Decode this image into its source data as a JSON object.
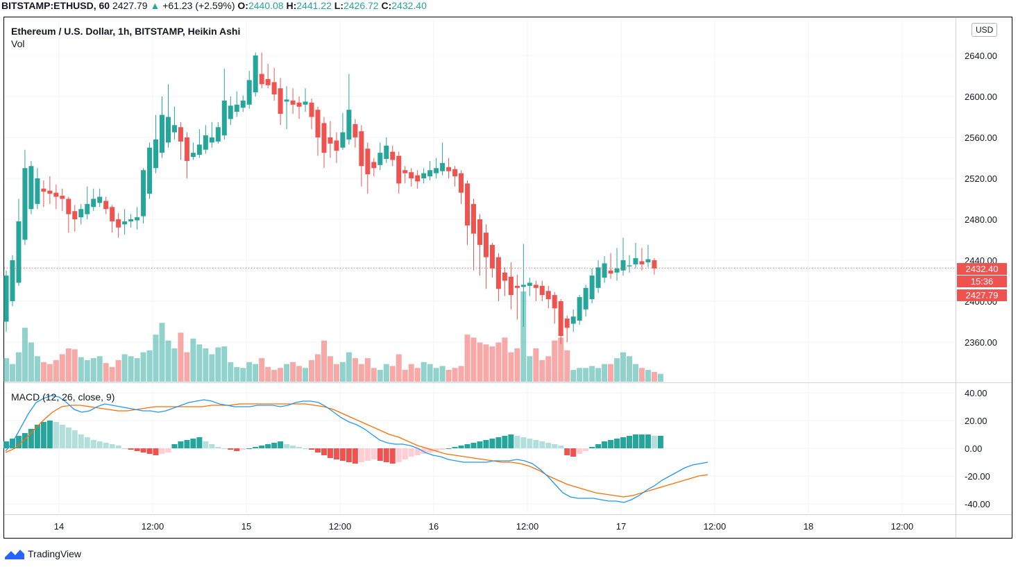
{
  "header": {
    "symbol": "BITSTAMP:ETHUSD, 60",
    "last": "2427.79",
    "change": "+61.23 (+2.59%)",
    "o_label": "O:",
    "o": "2440.08",
    "h_label": "H:",
    "h": "2441.22",
    "l_label": "L:",
    "l": "2426.72",
    "c_label": "C:",
    "c": "2432.40"
  },
  "legend": {
    "title": "Ethereum / U.S. Dollar, 1h, BITSTAMP, Heikin Ashi",
    "vol": "Vol",
    "macd": "MACD (12, 26, close, 9)"
  },
  "currency": "USD",
  "price_tag": {
    "price": "2432.40",
    "countdown": "15:36",
    "last": "2427.79"
  },
  "brand": "TradingView",
  "colors": {
    "up": "#26a69a",
    "down": "#ef5350",
    "macd": "#2196f3",
    "signal": "#ff6d00"
  },
  "chart_data": {
    "type": "candlestick",
    "price_axis": {
      "ticks": [
        "2640.00",
        "2600.00",
        "2560.00",
        "2520.00",
        "2480.00",
        "2440.00",
        "2400.00",
        "2360.00"
      ],
      "ylim": [
        2342,
        2660
      ]
    },
    "macd_axis": {
      "ticks": [
        "40.00",
        "20.00",
        "0.00",
        "-20.00",
        "-40.00"
      ],
      "ylim": [
        -50,
        45
      ]
    },
    "time_axis": {
      "ticks": [
        "14",
        "12:00",
        "15",
        "12:00",
        "16",
        "12:00",
        "17",
        "12:00",
        "18",
        "12:00"
      ]
    },
    "heikin_ashi": [
      {
        "o": 2380,
        "c": 2425,
        "h": 2430,
        "l": 2370
      },
      {
        "o": 2400,
        "c": 2440,
        "h": 2445,
        "l": 2395
      },
      {
        "o": 2418,
        "c": 2478,
        "h": 2500,
        "l": 2415
      },
      {
        "o": 2460,
        "c": 2530,
        "h": 2548,
        "l": 2455
      },
      {
        "o": 2490,
        "c": 2532,
        "h": 2537,
        "l": 2485
      },
      {
        "o": 2495,
        "c": 2520,
        "h": 2530,
        "l": 2490
      },
      {
        "o": 2510,
        "c": 2507,
        "h": 2518,
        "l": 2492
      },
      {
        "o": 2508,
        "c": 2505,
        "h": 2522,
        "l": 2495
      },
      {
        "o": 2506,
        "c": 2502,
        "h": 2514,
        "l": 2490
      },
      {
        "o": 2503,
        "c": 2500,
        "h": 2510,
        "l": 2488
      },
      {
        "o": 2500,
        "c": 2485,
        "h": 2502,
        "l": 2467
      },
      {
        "o": 2488,
        "c": 2480,
        "h": 2494,
        "l": 2468
      },
      {
        "o": 2482,
        "c": 2490,
        "h": 2495,
        "l": 2475
      },
      {
        "o": 2485,
        "c": 2495,
        "h": 2512,
        "l": 2480
      },
      {
        "o": 2492,
        "c": 2500,
        "h": 2510,
        "l": 2488
      },
      {
        "o": 2496,
        "c": 2502,
        "h": 2510,
        "l": 2492
      },
      {
        "o": 2498,
        "c": 2490,
        "h": 2502,
        "l": 2485
      },
      {
        "o": 2492,
        "c": 2478,
        "h": 2494,
        "l": 2467
      },
      {
        "o": 2480,
        "c": 2472,
        "h": 2486,
        "l": 2462
      },
      {
        "o": 2475,
        "c": 2478,
        "h": 2490,
        "l": 2465
      },
      {
        "o": 2478,
        "c": 2480,
        "h": 2485,
        "l": 2472
      },
      {
        "o": 2479,
        "c": 2482,
        "h": 2492,
        "l": 2470
      },
      {
        "o": 2483,
        "c": 2528,
        "h": 2530,
        "l": 2476
      },
      {
        "o": 2505,
        "c": 2550,
        "h": 2555,
        "l": 2500
      },
      {
        "o": 2530,
        "c": 2558,
        "h": 2582,
        "l": 2525
      },
      {
        "o": 2545,
        "c": 2582,
        "h": 2600,
        "l": 2540
      },
      {
        "o": 2555,
        "c": 2580,
        "h": 2612,
        "l": 2550
      },
      {
        "o": 2565,
        "c": 2572,
        "h": 2590,
        "l": 2558
      },
      {
        "o": 2570,
        "c": 2556,
        "h": 2575,
        "l": 2538
      },
      {
        "o": 2560,
        "c": 2537,
        "h": 2565,
        "l": 2520
      },
      {
        "o": 2541,
        "c": 2545,
        "h": 2555,
        "l": 2538
      },
      {
        "o": 2543,
        "c": 2553,
        "h": 2568,
        "l": 2540
      },
      {
        "o": 2548,
        "c": 2562,
        "h": 2572,
        "l": 2544
      },
      {
        "o": 2555,
        "c": 2560,
        "h": 2575,
        "l": 2550
      },
      {
        "o": 2556,
        "c": 2570,
        "h": 2575,
        "l": 2554
      },
      {
        "o": 2562,
        "c": 2596,
        "h": 2627,
        "l": 2558
      },
      {
        "o": 2578,
        "c": 2591,
        "h": 2600,
        "l": 2572
      },
      {
        "o": 2585,
        "c": 2592,
        "h": 2605,
        "l": 2580
      },
      {
        "o": 2589,
        "c": 2596,
        "h": 2601,
        "l": 2585
      },
      {
        "o": 2592,
        "c": 2616,
        "h": 2625,
        "l": 2588
      },
      {
        "o": 2604,
        "c": 2640,
        "h": 2643,
        "l": 2600
      },
      {
        "o": 2622,
        "c": 2612,
        "h": 2643,
        "l": 2608
      },
      {
        "o": 2617,
        "c": 2611,
        "h": 2632,
        "l": 2608
      },
      {
        "o": 2614,
        "c": 2602,
        "h": 2628,
        "l": 2596
      },
      {
        "o": 2608,
        "c": 2583,
        "h": 2618,
        "l": 2572
      },
      {
        "o": 2595,
        "c": 2597,
        "h": 2610,
        "l": 2568
      },
      {
        "o": 2596,
        "c": 2592,
        "h": 2608,
        "l": 2583
      },
      {
        "o": 2594,
        "c": 2590,
        "h": 2600,
        "l": 2578
      },
      {
        "o": 2592,
        "c": 2595,
        "h": 2608,
        "l": 2585
      },
      {
        "o": 2594,
        "c": 2580,
        "h": 2598,
        "l": 2568
      },
      {
        "o": 2587,
        "c": 2560,
        "h": 2590,
        "l": 2542
      },
      {
        "o": 2574,
        "c": 2545,
        "h": 2580,
        "l": 2530
      },
      {
        "o": 2560,
        "c": 2554,
        "h": 2576,
        "l": 2540
      },
      {
        "o": 2557,
        "c": 2547,
        "h": 2565,
        "l": 2535
      },
      {
        "o": 2550,
        "c": 2565,
        "h": 2584,
        "l": 2548
      },
      {
        "o": 2558,
        "c": 2587,
        "h": 2622,
        "l": 2553
      },
      {
        "o": 2573,
        "c": 2560,
        "h": 2578,
        "l": 2550
      },
      {
        "o": 2566,
        "c": 2532,
        "h": 2572,
        "l": 2512
      },
      {
        "o": 2549,
        "c": 2524,
        "h": 2555,
        "l": 2505
      },
      {
        "o": 2536,
        "c": 2530,
        "h": 2540,
        "l": 2522
      },
      {
        "o": 2533,
        "c": 2545,
        "h": 2555,
        "l": 2528
      },
      {
        "o": 2539,
        "c": 2552,
        "h": 2560,
        "l": 2535
      },
      {
        "o": 2546,
        "c": 2538,
        "h": 2552,
        "l": 2532
      },
      {
        "o": 2542,
        "c": 2515,
        "h": 2546,
        "l": 2505
      },
      {
        "o": 2528,
        "c": 2525,
        "h": 2532,
        "l": 2515
      },
      {
        "o": 2526,
        "c": 2520,
        "h": 2530,
        "l": 2512
      },
      {
        "o": 2523,
        "c": 2517,
        "h": 2528,
        "l": 2510
      },
      {
        "o": 2520,
        "c": 2525,
        "h": 2530,
        "l": 2515
      },
      {
        "o": 2522,
        "c": 2528,
        "h": 2537,
        "l": 2518
      },
      {
        "o": 2525,
        "c": 2530,
        "h": 2540,
        "l": 2520
      },
      {
        "o": 2527,
        "c": 2535,
        "h": 2555,
        "l": 2523
      },
      {
        "o": 2531,
        "c": 2527,
        "h": 2540,
        "l": 2520
      },
      {
        "o": 2529,
        "c": 2522,
        "h": 2532,
        "l": 2512
      },
      {
        "o": 2525,
        "c": 2506,
        "h": 2528,
        "l": 2495
      },
      {
        "o": 2515,
        "c": 2474,
        "h": 2518,
        "l": 2455
      },
      {
        "o": 2495,
        "c": 2466,
        "h": 2500,
        "l": 2430
      },
      {
        "o": 2480,
        "c": 2455,
        "h": 2485,
        "l": 2425
      },
      {
        "o": 2467,
        "c": 2443,
        "h": 2475,
        "l": 2412
      },
      {
        "o": 2455,
        "c": 2432,
        "h": 2457,
        "l": 2423
      },
      {
        "o": 2443,
        "c": 2412,
        "h": 2447,
        "l": 2400
      },
      {
        "o": 2428,
        "c": 2420,
        "h": 2433,
        "l": 2405
      },
      {
        "o": 2424,
        "c": 2406,
        "h": 2438,
        "l": 2392
      },
      {
        "o": 2415,
        "c": 2413,
        "h": 2426,
        "l": 2382
      },
      {
        "o": 2414,
        "c": 2416,
        "h": 2456,
        "l": 2375
      },
      {
        "o": 2415,
        "c": 2418,
        "h": 2423,
        "l": 2405
      },
      {
        "o": 2416,
        "c": 2413,
        "h": 2420,
        "l": 2400
      },
      {
        "o": 2415,
        "c": 2406,
        "h": 2420,
        "l": 2400
      },
      {
        "o": 2410,
        "c": 2402,
        "h": 2415,
        "l": 2393
      },
      {
        "o": 2406,
        "c": 2393,
        "h": 2409,
        "l": 2378
      },
      {
        "o": 2400,
        "c": 2366,
        "h": 2402,
        "l": 2358
      },
      {
        "o": 2383,
        "c": 2374,
        "h": 2386,
        "l": 2360
      },
      {
        "o": 2378,
        "c": 2385,
        "h": 2392,
        "l": 2370
      },
      {
        "o": 2381,
        "c": 2404,
        "h": 2406,
        "l": 2377
      },
      {
        "o": 2392,
        "c": 2413,
        "h": 2416,
        "l": 2385
      },
      {
        "o": 2402,
        "c": 2425,
        "h": 2432,
        "l": 2398
      },
      {
        "o": 2413,
        "c": 2433,
        "h": 2440,
        "l": 2408
      },
      {
        "o": 2423,
        "c": 2437,
        "h": 2444,
        "l": 2418
      },
      {
        "o": 2430,
        "c": 2427,
        "h": 2447,
        "l": 2422
      },
      {
        "o": 2428,
        "c": 2432,
        "h": 2452,
        "l": 2420
      },
      {
        "o": 2430,
        "c": 2440,
        "h": 2462,
        "l": 2425
      },
      {
        "o": 2435,
        "c": 2435,
        "h": 2445,
        "l": 2428
      },
      {
        "o": 2436,
        "c": 2442,
        "h": 2457,
        "l": 2432
      },
      {
        "o": 2439,
        "c": 2436,
        "h": 2452,
        "l": 2430
      },
      {
        "o": 2438,
        "c": 2441,
        "h": 2455,
        "l": 2433
      },
      {
        "o": 2440,
        "c": 2432,
        "h": 2442,
        "l": 2426
      }
    ],
    "volume": [
      24,
      18,
      30,
      55,
      40,
      26,
      20,
      18,
      22,
      28,
      34,
      33,
      25,
      22,
      24,
      26,
      19,
      15,
      22,
      28,
      26,
      24,
      30,
      32,
      48,
      60,
      42,
      34,
      50,
      30,
      44,
      38,
      34,
      28,
      35,
      36,
      20,
      15,
      14,
      20,
      18,
      24,
      15,
      12,
      14,
      18,
      20,
      16,
      14,
      22,
      28,
      42,
      26,
      18,
      20,
      30,
      24,
      18,
      24,
      14,
      12,
      18,
      16,
      28,
      12,
      18,
      14,
      20,
      18,
      14,
      16,
      12,
      14,
      16,
      48,
      45,
      40,
      38,
      36,
      40,
      45,
      30,
      34,
      92,
      26,
      34,
      22,
      26,
      42,
      45,
      32,
      12,
      14,
      14,
      16,
      14,
      18,
      18,
      24,
      30,
      26,
      18,
      14,
      12,
      10,
      8
    ],
    "macd_hist": [
      5,
      7,
      9,
      11,
      14,
      17,
      19,
      20,
      19,
      17,
      15,
      13,
      10,
      8,
      6,
      5,
      4,
      3,
      2,
      0,
      -1,
      -2,
      -3,
      -4,
      -5,
      -4,
      -3,
      3,
      5,
      6,
      7,
      8,
      5,
      3,
      1,
      0,
      -1,
      -2,
      -1,
      0,
      1,
      2,
      3,
      4,
      5,
      3,
      2,
      1,
      0,
      -1,
      -3,
      -5,
      -7,
      -8,
      -9,
      -10,
      -11,
      -10,
      -9,
      -8,
      -9,
      -10,
      -11,
      -10,
      -8,
      -6,
      -5,
      -4,
      -3,
      -2,
      -1,
      0,
      1,
      2,
      3,
      4,
      5,
      6,
      7,
      8,
      9,
      10,
      9,
      8,
      7,
      6,
      5,
      4,
      3,
      2,
      -5,
      -6,
      -4,
      -2,
      1,
      3,
      5,
      6,
      7,
      8,
      9,
      10,
      10,
      10,
      9,
      9
    ],
    "macd_line": [
      -2,
      5,
      15,
      25,
      33,
      36,
      38,
      37,
      33,
      28,
      26,
      27,
      30,
      32,
      31,
      30,
      29,
      28,
      27,
      27,
      26,
      27,
      29,
      31,
      33,
      34,
      35,
      34,
      32,
      31,
      30,
      30,
      30,
      31,
      31,
      31,
      30,
      31,
      33,
      34,
      34,
      33,
      30,
      26,
      22,
      19,
      17,
      14,
      10,
      6,
      4,
      3,
      3,
      2,
      0,
      -3,
      -5,
      -6,
      -8,
      -9,
      -10,
      -10,
      -10,
      -10,
      -9,
      -9,
      -9,
      -8,
      -9,
      -11,
      -15,
      -20,
      -26,
      -32,
      -35,
      -36,
      -36,
      -36,
      -37,
      -38,
      -38,
      -39,
      -37,
      -34,
      -30,
      -27,
      -23,
      -20,
      -17,
      -14,
      -12,
      -11,
      -10
    ],
    "signal_line": [
      -3,
      0,
      6,
      13,
      20,
      26,
      30,
      31,
      31,
      30,
      29,
      28,
      27,
      27,
      28,
      29,
      30,
      30,
      30,
      30,
      30,
      30,
      31,
      31,
      31,
      32,
      32,
      32,
      32,
      32,
      32,
      32,
      32,
      31,
      30,
      28,
      25,
      22,
      19,
      16,
      13,
      10,
      8,
      5,
      2,
      0,
      -2,
      -4,
      -5,
      -6,
      -7,
      -8,
      -9,
      -10,
      -10,
      -11,
      -13,
      -16,
      -20,
      -23,
      -26,
      -28,
      -30,
      -32,
      -33,
      -34,
      -35,
      -34,
      -32,
      -30,
      -28,
      -26,
      -24,
      -22,
      -20,
      -19
    ]
  }
}
